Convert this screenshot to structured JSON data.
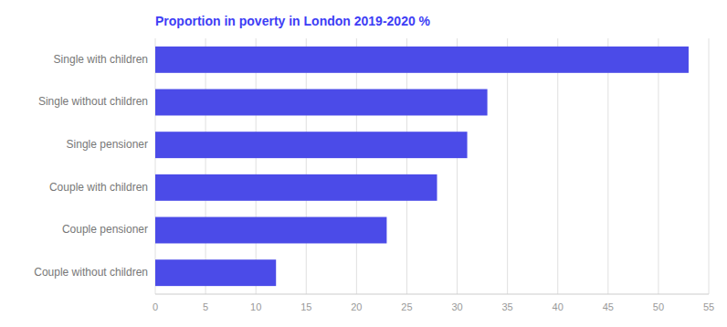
{
  "chart_data": {
    "type": "bar",
    "orientation": "horizontal",
    "title": "Proportion in poverty in London 2019-2020 %",
    "categories": [
      "Single with children",
      "Single without children",
      "Single pensioner",
      "Couple with children",
      "Couple pensioner",
      "Couple without children"
    ],
    "values": [
      53,
      33,
      31,
      28,
      23,
      12
    ],
    "color": "#4b4be8",
    "xlim": [
      0,
      55
    ],
    "xticks": [
      0,
      5,
      10,
      15,
      20,
      25,
      30,
      35,
      40,
      45,
      50,
      55
    ],
    "grid": true
  }
}
